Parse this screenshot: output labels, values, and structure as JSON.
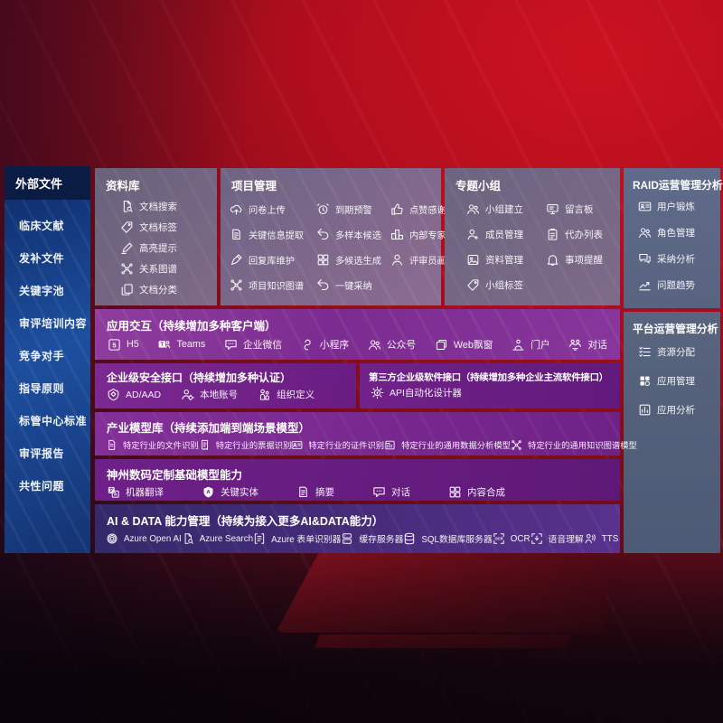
{
  "sidebar": {
    "title": "外部文件",
    "items": [
      {
        "label": "临床文献"
      },
      {
        "label": "发补文件"
      },
      {
        "label": "关键字池"
      },
      {
        "label": "审评培训内容"
      },
      {
        "label": "竞争对手"
      },
      {
        "label": "指导原则"
      },
      {
        "label": "标管中心标准"
      },
      {
        "label": "审评报告"
      },
      {
        "label": "共性问题"
      }
    ]
  },
  "panels": {
    "library": {
      "title": "资料库",
      "items": [
        {
          "icon": "doc-search",
          "label": "文档搜索"
        },
        {
          "icon": "tag",
          "label": "文档标签"
        },
        {
          "icon": "highlight-pen",
          "label": "高亮提示"
        },
        {
          "icon": "network",
          "label": "关系图谱"
        },
        {
          "icon": "doc-copy",
          "label": "文档分类"
        }
      ]
    },
    "project": {
      "title": "项目管理",
      "items": [
        {
          "icon": "cloud-upload",
          "label": "问卷上传"
        },
        {
          "icon": "alarm",
          "label": "到期预警"
        },
        {
          "icon": "thumbs-up",
          "label": "点赞感谢"
        },
        {
          "icon": "doc-extract",
          "label": "关键信息提取"
        },
        {
          "icon": "reply-arrow",
          "label": "多样本候选"
        },
        {
          "icon": "ranking",
          "label": "内部专家排名"
        },
        {
          "icon": "pen-edit",
          "label": "回复库维护"
        },
        {
          "icon": "grid",
          "label": "多候选生成"
        },
        {
          "icon": "person",
          "label": "评审员画像"
        },
        {
          "icon": "knowledge-graph",
          "label": "项目知识图谱"
        },
        {
          "icon": "adopt-arrow",
          "label": "一键采纳"
        }
      ]
    },
    "topic": {
      "title": "专题小组",
      "items": [
        {
          "icon": "users",
          "label": "小组建立"
        },
        {
          "icon": "message-board",
          "label": "留言板"
        },
        {
          "icon": "member",
          "label": "成员管理"
        },
        {
          "icon": "clipboard",
          "label": "代办列表"
        },
        {
          "icon": "album",
          "label": "资料管理"
        },
        {
          "icon": "bell",
          "label": "事项提醒"
        },
        {
          "icon": "tag",
          "label": "小组标签"
        }
      ]
    },
    "raid": {
      "title": "RAID运营管理分析",
      "items": [
        {
          "icon": "id-card",
          "label": "用户锻炼"
        },
        {
          "icon": "users",
          "label": "角色管理"
        },
        {
          "icon": "chat-qa",
          "label": "采纳分析"
        },
        {
          "icon": "trend-chart",
          "label": "问题趋势"
        }
      ]
    },
    "platform": {
      "title": "平台运营管理分析",
      "items": [
        {
          "icon": "list-check",
          "label": "资源分配"
        },
        {
          "icon": "app-grid",
          "label": "应用管理"
        },
        {
          "icon": "app-chart",
          "label": "应用分析"
        }
      ]
    },
    "interaction": {
      "title": "应用交互（持续增加多种客户端）",
      "items": [
        {
          "icon": "h5",
          "label": "H5"
        },
        {
          "icon": "teams",
          "label": "Teams"
        },
        {
          "icon": "wechat-chat",
          "label": "企业微信"
        },
        {
          "icon": "miniprogram",
          "label": "小程序"
        },
        {
          "icon": "official-account",
          "label": "公众号"
        },
        {
          "icon": "web-window",
          "label": "Web飘窗"
        },
        {
          "icon": "portal-user",
          "label": "门户"
        },
        {
          "icon": "dialog-users",
          "label": "对话"
        }
      ]
    },
    "security": {
      "title": "企业级安全接口（持续增加多种认证）",
      "items": [
        {
          "icon": "ad-shield",
          "label": "AD/AAD"
        },
        {
          "icon": "local-account",
          "label": "本地账号"
        },
        {
          "icon": "org-users",
          "label": "组织定义"
        }
      ]
    },
    "third_party": {
      "title": "第三方企业级软件接口（持续增加多种企业主流软件接口）",
      "items": [
        {
          "icon": "api-gear",
          "label": "API自动化设计器"
        }
      ]
    },
    "industry_models": {
      "title": "产业模型库（持续添加端到端场景模型）",
      "items": [
        {
          "icon": "doc-file",
          "label": "特定行业的文件识别"
        },
        {
          "icon": "receipt",
          "label": "特定行业的票据识别"
        },
        {
          "icon": "id-card",
          "label": "特定行业的证件识别"
        },
        {
          "icon": "data-model",
          "label": "特定行业的通用数据分析模型"
        },
        {
          "icon": "knowledge-graph",
          "label": "特定行业的通用知识图谱模型"
        }
      ]
    },
    "base_models": {
      "title": "神州数码定制基础模型能力",
      "items": [
        {
          "icon": "translate",
          "label": "机器翻译"
        },
        {
          "icon": "entity-shield",
          "label": "关键实体"
        },
        {
          "icon": "summary-doc",
          "label": "摘要"
        },
        {
          "icon": "wechat-chat",
          "label": "对话"
        },
        {
          "icon": "grid",
          "label": "内容合成"
        }
      ]
    },
    "ai_data": {
      "title": "AI & DATA 能力管理（持续为接入更多AI&DATA能力）",
      "items": [
        {
          "icon": "openai",
          "label": "Azure Open AI"
        },
        {
          "icon": "azure-search",
          "label": "Azure Search"
        },
        {
          "icon": "form-recognizer",
          "label": "Azure 表单识别器"
        },
        {
          "icon": "cache-server",
          "label": "缓存服务器"
        },
        {
          "icon": "sql-database",
          "label": "SQL数据库服务器"
        },
        {
          "icon": "ocr",
          "label": "OCR"
        },
        {
          "icon": "voice-understand",
          "label": "语音理解"
        },
        {
          "icon": "tts",
          "label": "TTS"
        }
      ]
    }
  },
  "colors": {
    "background_red": "#a50f1f",
    "background_dark": "#170812",
    "sidebar_blue": "#1d4f9f",
    "sidebar_header_navy": "#0a1c44",
    "panel_grey_purple": "#6e6483",
    "panel_blue_grey": "#59657f",
    "purple_bright": "#8e3d9e",
    "purple_dark": "#691c81",
    "indigo_ai_row": "#33296a",
    "text_white": "#ffffff"
  }
}
